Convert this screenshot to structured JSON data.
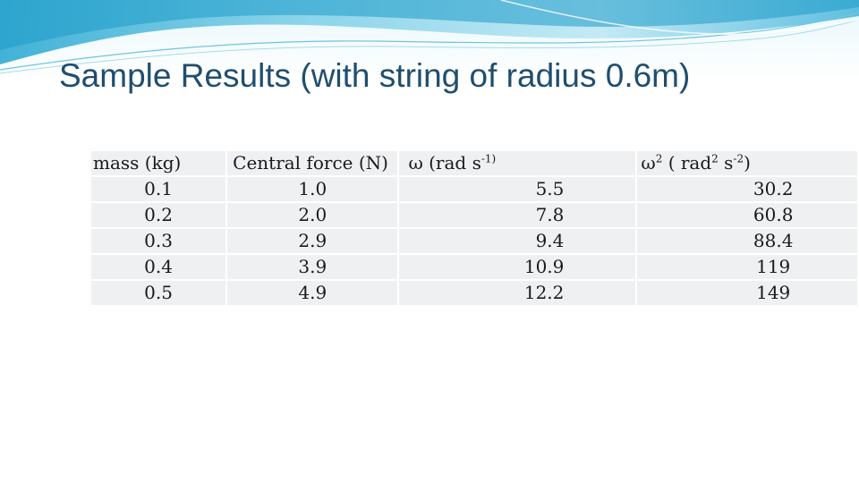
{
  "slide": {
    "title": "Sample Results (with string of radius 0.6m)"
  },
  "table": {
    "headers": {
      "mass": "mass (kg)",
      "force": "Central force (N)",
      "omega_prefix": "ω  (rad s",
      "omega_sup": "-1)",
      "omega2_symbol": "ω",
      "omega2_sup1": "2",
      "omega2_mid": " ( rad",
      "omega2_sup2": "2",
      "omega2_s": " s",
      "omega2_sup3": "-2",
      "omega2_close": ")"
    },
    "rows": [
      [
        "0.1",
        "1.0",
        "5.5",
        "30.2"
      ],
      [
        "0.2",
        "2.0",
        "7.8",
        "60.8"
      ],
      [
        "0.3",
        "2.9",
        "9.4",
        "88.4"
      ],
      [
        "0.4",
        "3.9",
        "10.9",
        "119"
      ],
      [
        "0.5",
        "4.9",
        "12.2",
        "149"
      ]
    ]
  },
  "colors": {
    "title": "#1f4e6f",
    "wave_light": "#cfeef6",
    "wave_mid": "#7fd0e8",
    "wave_dark": "#2fa9d2",
    "cell_bg": "#eff0f2"
  }
}
